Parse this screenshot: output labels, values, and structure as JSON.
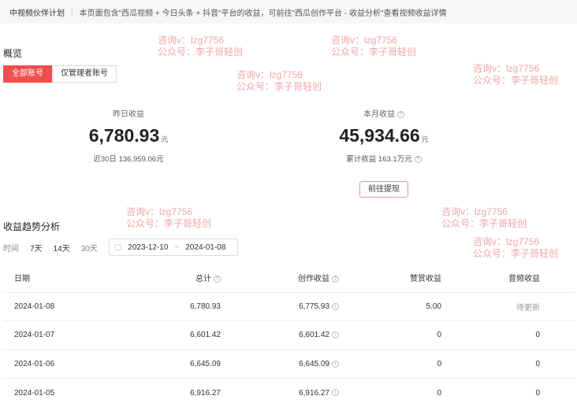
{
  "header": {
    "title": "中视频伙伴计划",
    "notice": "本页面包含\"西瓜视频 + 今日头条 + 抖音\"平台的收益，可前往\"西瓜创作平台 - 收益分析\"查看视频收益详情"
  },
  "overview": {
    "title": "概览",
    "tabs": [
      {
        "label": "全部账号",
        "active": true
      },
      {
        "label": "仅管理者账号",
        "active": false
      }
    ]
  },
  "stats": {
    "yesterday": {
      "label": "昨日收益",
      "value": "6,780.93",
      "unit": "元",
      "sub": "近30日 136,959.06元"
    },
    "month": {
      "label": "本月收益",
      "value": "45,934.66",
      "unit": "元",
      "sub": "累计收益 163.1万元"
    },
    "withdraw_label": "前往提现"
  },
  "trend": {
    "title": "收益趋势分析",
    "time_label": "时间",
    "ranges": [
      "7天",
      "14天",
      "30天"
    ],
    "date_start": "2023-12-10",
    "date_sep": "~",
    "date_end": "2024-01-08"
  },
  "table": {
    "columns": [
      "日期",
      "总计",
      "创作收益",
      "赞赏收益",
      "音频收益"
    ],
    "rows": [
      [
        "2024-01-08",
        "6,780.93",
        "6,775.93",
        "5.00",
        "待更新"
      ],
      [
        "2024-01-07",
        "6,601.42",
        "6,601.42",
        "0",
        "0"
      ],
      [
        "2024-01-06",
        "6,645.09",
        "6,645.09",
        "0",
        "0"
      ],
      [
        "2024-01-05",
        "6,916.27",
        "6,916.27",
        "0",
        "0"
      ]
    ]
  },
  "watermark": {
    "line1": "咨询v：lzg7756",
    "line2": "公众号：李子哥轻创"
  },
  "colors": {
    "accent": "#f04e4e"
  }
}
